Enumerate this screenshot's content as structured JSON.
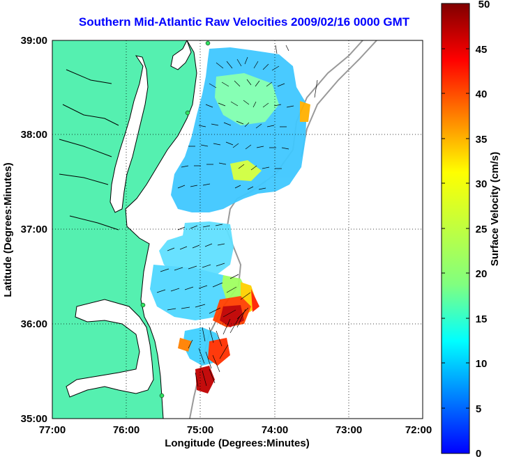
{
  "title": "Southern Mid-Atlantic Raw Velocities 2009/02/16 0000 GMT",
  "axes": {
    "xlabel": "Longitude (Degrees:Minutes)",
    "ylabel": "Latitude (Degrees:Minutes)",
    "x_ticks": [
      "77:00",
      "76:00",
      "75:00",
      "74:00",
      "73:00",
      "72:00"
    ],
    "y_ticks": [
      "39:00",
      "38:00",
      "37:00",
      "36:00",
      "35:00"
    ]
  },
  "colorbar": {
    "label": "Surface Velocity (cm/s)",
    "ticks": [
      "50",
      "45",
      "40",
      "35",
      "30",
      "25",
      "20",
      "15",
      "10",
      "5",
      "0"
    ],
    "range": [
      0,
      50
    ]
  },
  "colors": {
    "title": "#0000ff",
    "land": "#55f0b0",
    "bathymetry": "#999999"
  }
}
